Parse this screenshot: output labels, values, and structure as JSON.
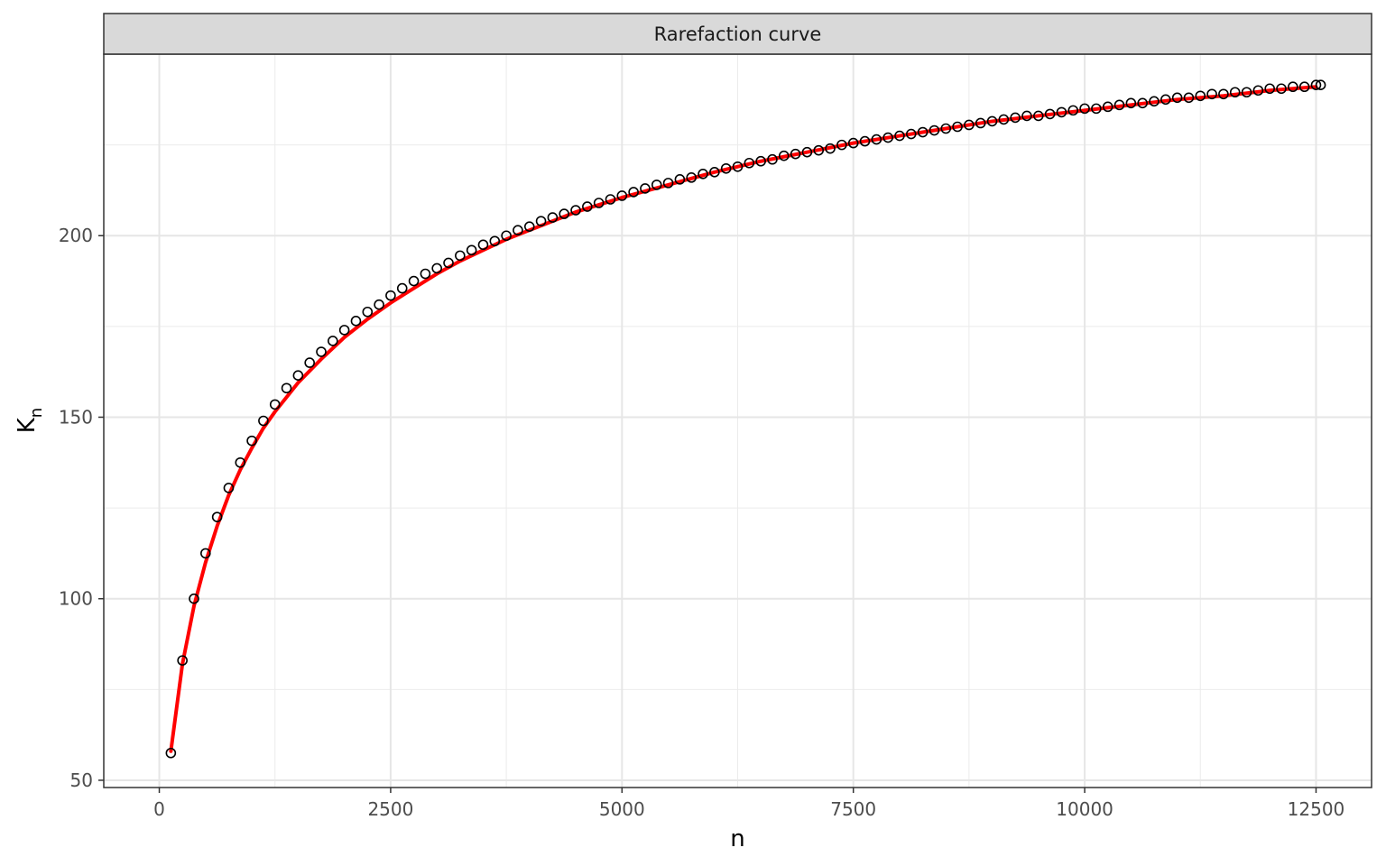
{
  "chart_data": {
    "type": "scatter",
    "title": "Rarefaction curve",
    "xlabel": "n",
    "ylabel": {
      "main": "K",
      "subscript": "n"
    },
    "xlim": [
      -600,
      13100
    ],
    "ylim": [
      48,
      250
    ],
    "x_ticks": [
      0,
      2500,
      5000,
      7500,
      10000,
      12500
    ],
    "x_tick_labels": [
      "0",
      "2500",
      "5000",
      "7500",
      "10000",
      "12500"
    ],
    "y_ticks": [
      50,
      100,
      150,
      200
    ],
    "y_tick_labels": [
      "50",
      "100",
      "150",
      "200"
    ],
    "grid": true,
    "series": [
      {
        "kind": "points",
        "style": "open-circle",
        "color": "#000000",
        "points": [
          [
            125,
            57.5
          ],
          [
            250,
            83
          ],
          [
            375,
            100
          ],
          [
            500,
            112.5
          ],
          [
            625,
            122.5
          ],
          [
            750,
            130.5
          ],
          [
            875,
            137.5
          ],
          [
            1000,
            143.5
          ],
          [
            1125,
            149
          ],
          [
            1250,
            153.5
          ],
          [
            1375,
            158
          ],
          [
            1500,
            161.5
          ],
          [
            1625,
            165
          ],
          [
            1750,
            168
          ],
          [
            1875,
            171
          ],
          [
            2000,
            174
          ],
          [
            2125,
            176.5
          ],
          [
            2250,
            179
          ],
          [
            2375,
            181
          ],
          [
            2500,
            183.5
          ],
          [
            2625,
            185.5
          ],
          [
            2750,
            187.5
          ],
          [
            2875,
            189.5
          ],
          [
            3000,
            191
          ],
          [
            3125,
            192.5
          ],
          [
            3250,
            194.5
          ],
          [
            3375,
            196
          ],
          [
            3500,
            197.5
          ],
          [
            3625,
            198.5
          ],
          [
            3750,
            200
          ],
          [
            3875,
            201.5
          ],
          [
            4000,
            202.5
          ],
          [
            4125,
            204
          ],
          [
            4250,
            205
          ],
          [
            4375,
            206
          ],
          [
            4500,
            207
          ],
          [
            4625,
            208
          ],
          [
            4750,
            209
          ],
          [
            4875,
            210
          ],
          [
            5000,
            211
          ],
          [
            5125,
            212
          ],
          [
            5250,
            213
          ],
          [
            5375,
            214
          ],
          [
            5500,
            214.5
          ],
          [
            5625,
            215.5
          ],
          [
            5750,
            216
          ],
          [
            5875,
            217
          ],
          [
            6000,
            217.5
          ],
          [
            6125,
            218.5
          ],
          [
            6250,
            219
          ],
          [
            6375,
            220
          ],
          [
            6500,
            220.5
          ],
          [
            6625,
            221
          ],
          [
            6750,
            222
          ],
          [
            6875,
            222.5
          ],
          [
            7000,
            223
          ],
          [
            7125,
            223.5
          ],
          [
            7250,
            224
          ],
          [
            7375,
            225
          ],
          [
            7500,
            225.5
          ],
          [
            7625,
            226
          ],
          [
            7750,
            226.5
          ],
          [
            7875,
            227
          ],
          [
            8000,
            227.5
          ],
          [
            8125,
            228
          ],
          [
            8250,
            228.5
          ],
          [
            8375,
            229
          ],
          [
            8500,
            229.5
          ],
          [
            8625,
            230
          ],
          [
            8750,
            230.5
          ],
          [
            8875,
            231
          ],
          [
            9000,
            231.5
          ],
          [
            9125,
            232
          ],
          [
            9250,
            232.5
          ],
          [
            9375,
            233
          ],
          [
            9500,
            233
          ],
          [
            9625,
            233.5
          ],
          [
            9750,
            234
          ],
          [
            9875,
            234.5
          ],
          [
            10000,
            235
          ],
          [
            10125,
            235
          ],
          [
            10250,
            235.5
          ],
          [
            10375,
            236
          ],
          [
            10500,
            236.5
          ],
          [
            10625,
            236.5
          ],
          [
            10750,
            237
          ],
          [
            10875,
            237.5
          ],
          [
            11000,
            238
          ],
          [
            11125,
            238
          ],
          [
            11250,
            238.5
          ],
          [
            11375,
            239
          ],
          [
            11500,
            239
          ],
          [
            11625,
            239.5
          ],
          [
            11750,
            239.5
          ],
          [
            11875,
            240
          ],
          [
            12000,
            240.5
          ],
          [
            12125,
            240.5
          ],
          [
            12250,
            241
          ],
          [
            12375,
            241
          ],
          [
            12500,
            241.5
          ],
          [
            12550,
            241.5
          ]
        ]
      },
      {
        "kind": "line",
        "color": "#ff0000",
        "points": [
          [
            125,
            58
          ],
          [
            250,
            82
          ],
          [
            375,
            98
          ],
          [
            500,
            110
          ],
          [
            625,
            120
          ],
          [
            750,
            128.5
          ],
          [
            875,
            135.5
          ],
          [
            1000,
            141.5
          ],
          [
            1125,
            147
          ],
          [
            1250,
            151.5
          ],
          [
            1500,
            159.5
          ],
          [
            1750,
            166
          ],
          [
            2000,
            172
          ],
          [
            2250,
            177
          ],
          [
            2500,
            181.5
          ],
          [
            2750,
            185.5
          ],
          [
            3000,
            189.5
          ],
          [
            3250,
            193
          ],
          [
            3500,
            196
          ],
          [
            3750,
            199
          ],
          [
            4000,
            201.5
          ],
          [
            4250,
            204
          ],
          [
            4500,
            206.5
          ],
          [
            4750,
            208.5
          ],
          [
            5000,
            210.5
          ],
          [
            5500,
            214
          ],
          [
            6000,
            217.5
          ],
          [
            6500,
            220.5
          ],
          [
            7000,
            223
          ],
          [
            7500,
            225.5
          ],
          [
            8000,
            227.5
          ],
          [
            8500,
            229.5
          ],
          [
            9000,
            231.5
          ],
          [
            9500,
            233
          ],
          [
            10000,
            234.5
          ],
          [
            10500,
            236
          ],
          [
            11000,
            237.5
          ],
          [
            11500,
            238.5
          ],
          [
            12000,
            240
          ],
          [
            12500,
            241
          ]
        ]
      }
    ]
  }
}
